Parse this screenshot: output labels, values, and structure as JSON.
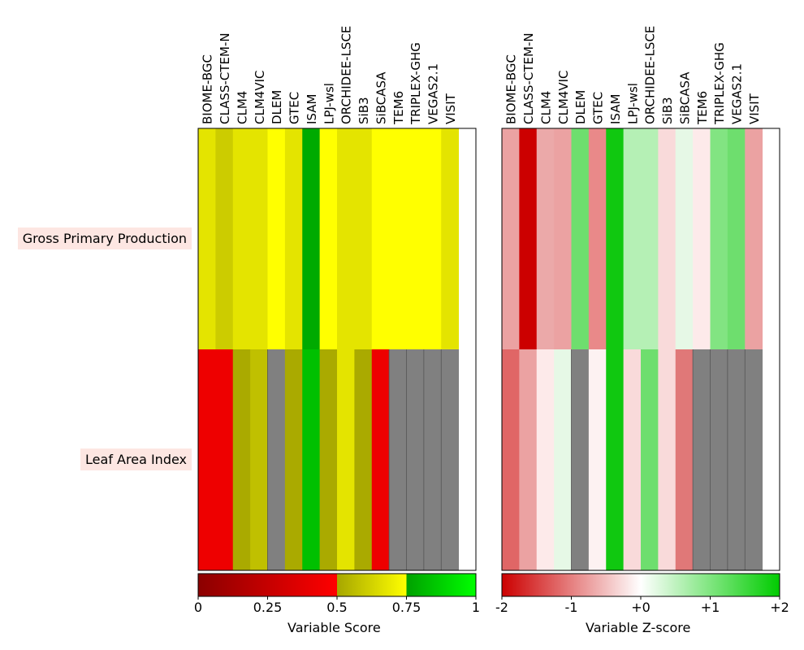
{
  "chart_data": {
    "type": "heatmap",
    "models": [
      "BIOME-BGC",
      "CLASS-CTEM-N",
      "CLM4",
      "CLM4VIC",
      "DLEM",
      "GTEC",
      "ISAM",
      "LPJ-wsl",
      "ORCHIDEE-LSCE",
      "SiB3",
      "SiBCASA",
      "TEM6",
      "TRIPLEX-GHG",
      "VEGAS2.1",
      "VISIT"
    ],
    "variables": [
      "Gross Primary Production",
      "Leaf Area Index"
    ],
    "score_panel": {
      "colorbar_label": "Variable Score",
      "ticks": [
        "0",
        "0.25",
        "0.5",
        "0.75",
        "1"
      ],
      "colorbar_segments": [
        {
          "from": "#8b0000",
          "to": "#ff0000"
        },
        {
          "from": "#a6a600",
          "to": "#ffff00"
        },
        {
          "from": "#00a000",
          "to": "#00ff00"
        }
      ],
      "cells": [
        [
          "#e4e400",
          "#cccc00",
          "#e4e400",
          "#e4e400",
          "#ffff00",
          "#e4e400",
          "#00aa00",
          "#ffff00",
          "#e4e400",
          "#e4e400",
          "#ffff00",
          "#ffff00",
          "#ffff00",
          "#ffff00",
          "#e4e400",
          null
        ],
        [
          "#ee0000",
          "#ee0000",
          "#aaaa00",
          "#c0c000",
          "#808080",
          "#aaaa00",
          "#00c000",
          "#aaaa00",
          "#e4e400",
          "#aaaa00",
          "#ee0000",
          "#808080",
          "#808080",
          "#808080",
          "#808080",
          null
        ]
      ]
    },
    "zscore_panel": {
      "colorbar_label": "Variable Z-score",
      "ticks": [
        "-2",
        "-1",
        "+0",
        "+1",
        "+2"
      ],
      "colorbar_gradient": [
        "#cc0000",
        "#ffffff",
        "#00cc00"
      ],
      "cells": [
        [
          "#eba2a2",
          "#cc0000",
          "#eba9a9",
          "#eba2a2",
          "#6ede6e",
          "#e98989",
          "#10c810",
          "#b5f0b5",
          "#b5f0b5",
          "#f9dada",
          "#e6f8e6",
          "#fdeaea",
          "#82e482",
          "#6ede6e",
          "#eba2a2",
          null
        ],
        [
          "#e06666",
          "#eba2a2",
          "#fdeaea",
          "#e6f8e6",
          "#808080",
          "#fdf2f2",
          "#10c810",
          "#f9dada",
          "#6ede6e",
          "#f9dada",
          "#e07878",
          "#808080",
          "#808080",
          "#808080",
          "#808080",
          null
        ]
      ]
    }
  }
}
